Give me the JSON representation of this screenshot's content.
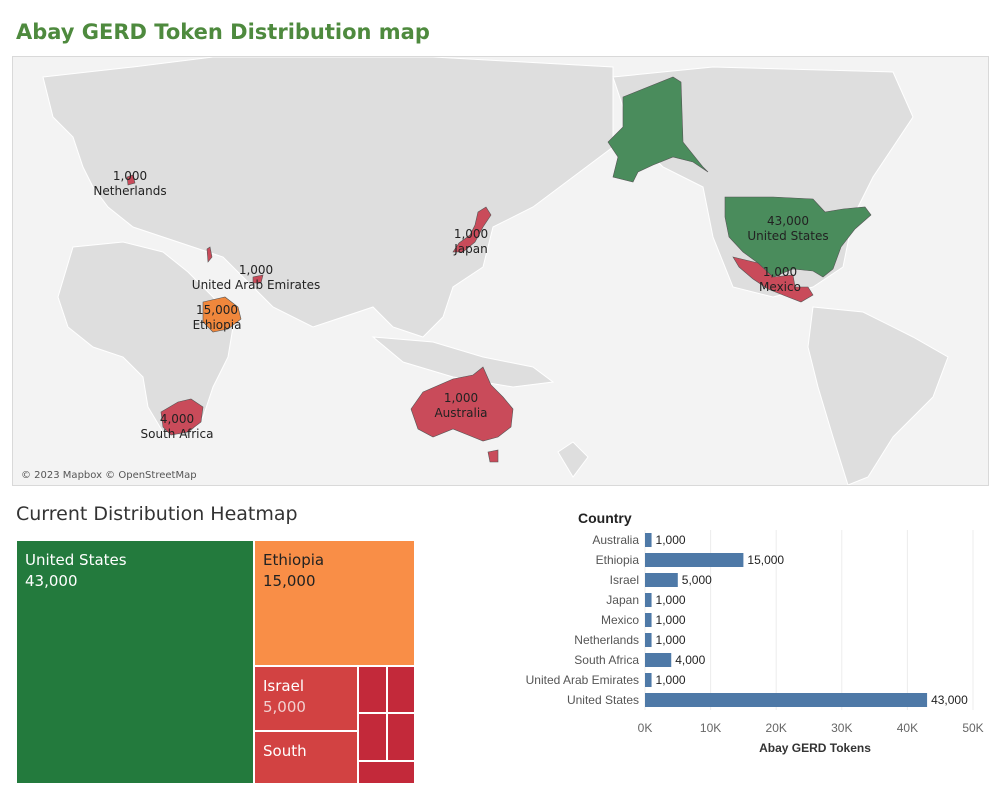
{
  "page": {
    "title": "Abay GERD Token Distribution map"
  },
  "map": {
    "attribution": "© 2023 Mapbox © OpenStreetMap",
    "colors": {
      "land": "#dcdcdc",
      "water": "#f2f2f2",
      "high": "#4a8c5c",
      "mid": "#f0873c",
      "low": "#c94b5a"
    },
    "labels": [
      {
        "name": "Netherlands",
        "value": "1,000"
      },
      {
        "name": "Japan",
        "value": "1,000"
      },
      {
        "name": "United States",
        "value": "43,000"
      },
      {
        "name": "United Arab Emirates",
        "value": "1,000"
      },
      {
        "name": "Mexico",
        "value": "1,000"
      },
      {
        "name": "Ethiopia",
        "value": "15,000"
      },
      {
        "name": "Australia",
        "value": "1,000"
      },
      {
        "name": "South Africa",
        "value": "4,000"
      }
    ]
  },
  "heatmap": {
    "title": "Current Distribution Heatmap",
    "tiles": [
      {
        "name": "United States",
        "value": "43,000",
        "color": "#237a3d"
      },
      {
        "name": "Ethiopia",
        "value": "15,000",
        "color": "#f98e47"
      },
      {
        "name": "Israel",
        "value": "5,000",
        "color": "#d24242"
      },
      {
        "name": "South",
        "value": "",
        "color": "#d24242"
      }
    ],
    "small_tile_color": "#c3293a"
  },
  "chart_data": {
    "type": "bar",
    "orientation": "horizontal",
    "title": "Country",
    "xlabel": "Abay GERD Tokens",
    "ylabel": "",
    "categories": [
      "Australia",
      "Ethiopia",
      "Israel",
      "Japan",
      "Mexico",
      "Netherlands",
      "South Africa",
      "United Arab Emirates",
      "United States"
    ],
    "values": [
      1000,
      15000,
      5000,
      1000,
      1000,
      1000,
      4000,
      1000,
      43000
    ],
    "value_labels": [
      "1,000",
      "15,000",
      "5,000",
      "1,000",
      "1,000",
      "1,000",
      "4,000",
      "1,000",
      "43,000"
    ],
    "xlim": [
      0,
      50000
    ],
    "xticks": [
      "0K",
      "10K",
      "20K",
      "30K",
      "40K",
      "50K"
    ],
    "bar_color": "#4e79a7",
    "grid": true
  }
}
